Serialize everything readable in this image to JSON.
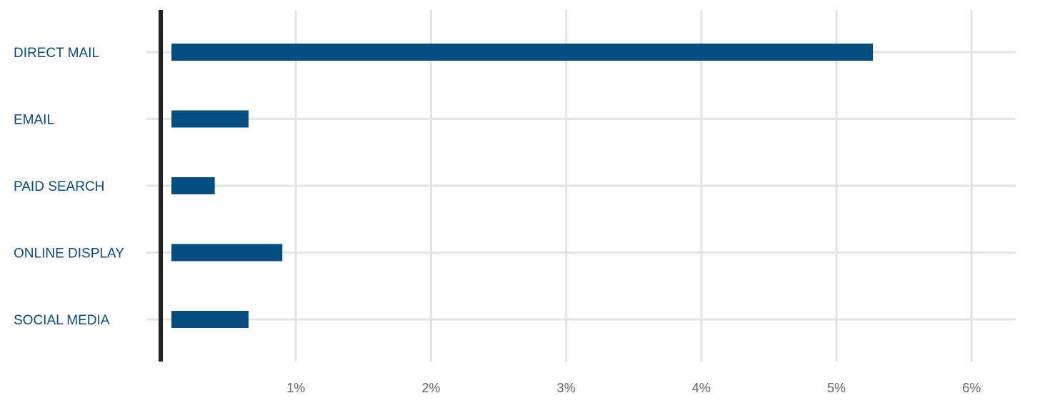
{
  "chart_data": {
    "type": "bar",
    "orientation": "horizontal",
    "categories": [
      "DIRECT MAIL",
      "EMAIL",
      "PAID SEARCH",
      "ONLINE DISPLAY",
      "SOCIAL MEDIA"
    ],
    "values": [
      5.27,
      0.65,
      0.4,
      0.9,
      0.65
    ],
    "xlim": [
      0,
      6.35
    ],
    "x_ticks": [
      1,
      2,
      3,
      4,
      5,
      6
    ],
    "x_tick_labels": [
      "1%",
      "2%",
      "3%",
      "4%",
      "5%",
      "6%"
    ],
    "grid": true,
    "legend": "none",
    "colors": {
      "bar": "#064d80",
      "category_text": "#0b4a79",
      "tick_text": "#666666",
      "grid": "#e3e3e3",
      "axis": "#222222"
    }
  }
}
